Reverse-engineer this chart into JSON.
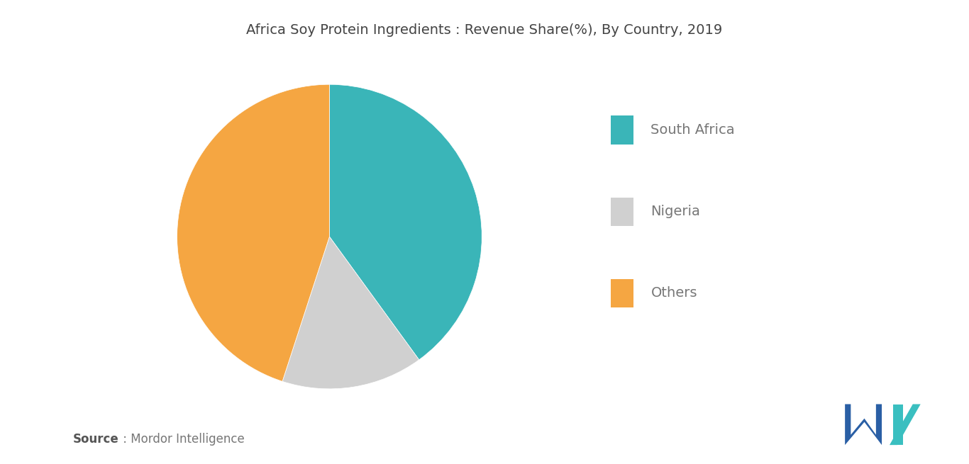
{
  "title": "Africa Soy Protein Ingredients : Revenue Share(%), By Country, 2019",
  "slices": [
    {
      "label": "South Africa",
      "value": 40,
      "color": "#3ab5b8"
    },
    {
      "label": "Nigeria",
      "value": 15,
      "color": "#d0d0d0"
    },
    {
      "label": "Others",
      "value": 45,
      "color": "#f5a642"
    }
  ],
  "legend_labels": [
    "South Africa",
    "Nigeria",
    "Others"
  ],
  "legend_colors": [
    "#3ab5b8",
    "#d0d0d0",
    "#f5a642"
  ],
  "source_bold": "Source",
  "source_rest": " : Mordor Intelligence",
  "background_color": "#ffffff",
  "title_fontsize": 14,
  "legend_fontsize": 14,
  "source_fontsize": 12,
  "startangle": 90
}
